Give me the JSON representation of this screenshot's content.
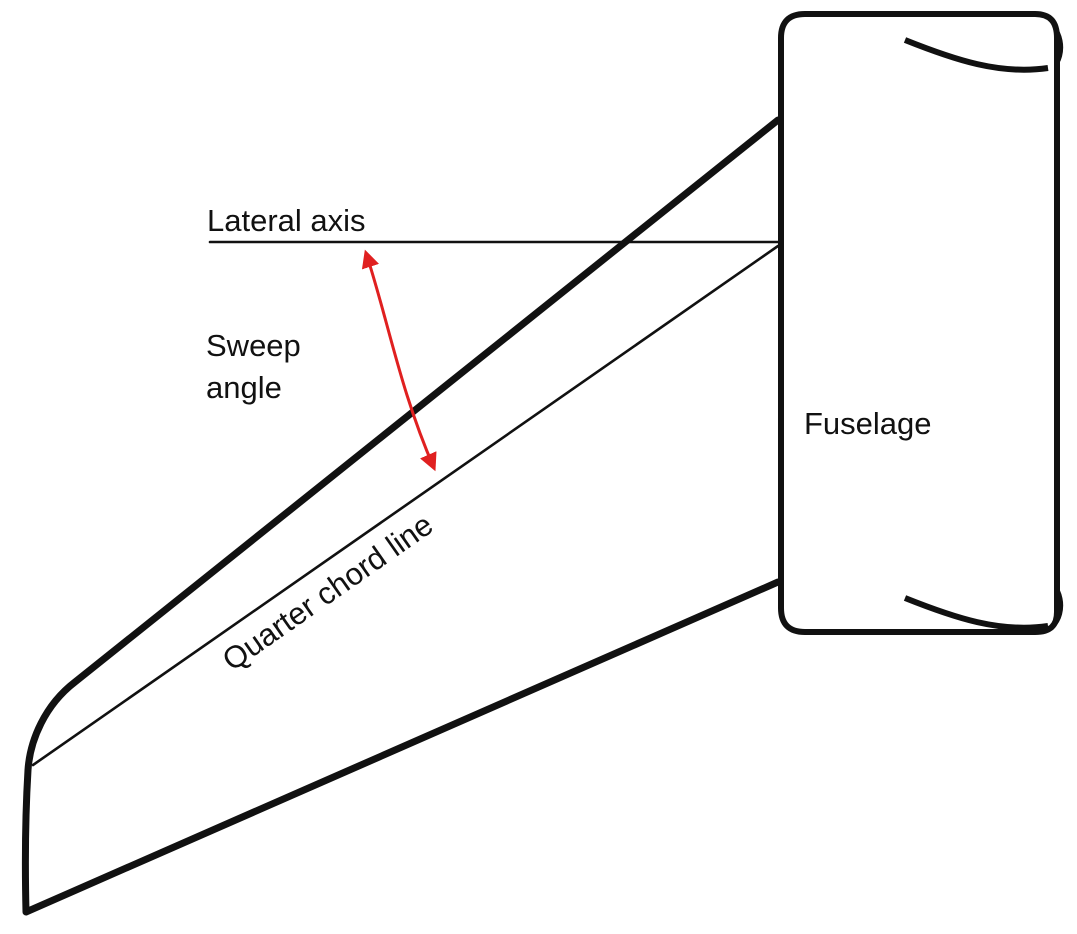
{
  "labels": {
    "lateral_axis": "Lateral axis",
    "sweep_line1": "Sweep",
    "sweep_line2": "angle",
    "quarter_chord": "Quarter chord line",
    "fuselage": "Fuselage"
  },
  "colors": {
    "outline": "#111111",
    "sweep_arrow": "#e02020",
    "background": "#ffffff"
  }
}
